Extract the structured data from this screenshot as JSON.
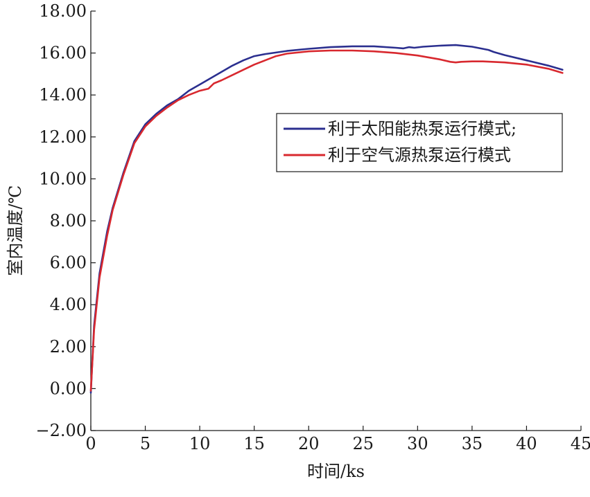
{
  "chart_data": {
    "type": "line",
    "title": "",
    "xlabel": "时间/ks",
    "ylabel": "室内温度/℃",
    "xlim": [
      0,
      45
    ],
    "ylim": [
      -2,
      18
    ],
    "xticks": [
      0,
      5,
      10,
      15,
      20,
      25,
      30,
      35,
      40,
      45
    ],
    "yticks": [
      -2,
      0,
      2,
      4,
      6,
      8,
      10,
      12,
      14,
      16,
      18
    ],
    "xtick_labels": [
      "0",
      "5",
      "10",
      "15",
      "20",
      "25",
      "30",
      "35",
      "40",
      "45"
    ],
    "ytick_labels": [
      "−2.00",
      "0.00",
      "2.00",
      "4.00",
      "6.00",
      "8.00",
      "10.00",
      "12.00",
      "14.00",
      "16.00",
      "18.00"
    ],
    "grid": false,
    "legend_position": "center-right",
    "series": [
      {
        "name": "利于太阳能热泵运行模式;",
        "color": "#2b2f8f",
        "x": [
          0,
          0.3,
          0.8,
          1.5,
          2,
          3,
          4,
          5,
          6,
          7,
          8,
          9,
          10,
          11,
          12,
          13,
          14,
          15,
          16,
          18,
          20,
          22,
          24,
          26,
          28,
          28.7,
          29.2,
          29.7,
          30.5,
          32,
          33.5,
          35,
          36.5,
          37,
          38,
          40,
          42,
          43.3
        ],
        "y": [
          -0.2,
          3.0,
          5.5,
          7.5,
          8.6,
          10.3,
          11.8,
          12.6,
          13.1,
          13.5,
          13.8,
          14.2,
          14.5,
          14.8,
          15.1,
          15.4,
          15.65,
          15.85,
          15.95,
          16.1,
          16.2,
          16.28,
          16.32,
          16.32,
          16.25,
          16.22,
          16.28,
          16.25,
          16.3,
          16.35,
          16.38,
          16.3,
          16.15,
          16.05,
          15.9,
          15.65,
          15.4,
          15.2
        ]
      },
      {
        "name": "利于空气源热泵运行模式",
        "color": "#d8282e",
        "x": [
          0,
          0.3,
          0.8,
          1.5,
          2,
          3,
          4,
          5,
          6,
          7,
          8,
          9,
          10,
          10.8,
          11,
          11.3,
          12,
          13,
          14,
          15,
          16,
          17,
          18,
          20,
          22,
          24,
          26,
          28,
          30,
          32,
          33,
          33.5,
          34,
          35,
          36,
          38,
          40,
          42,
          43.3
        ],
        "y": [
          -0.1,
          2.8,
          5.3,
          7.3,
          8.5,
          10.2,
          11.7,
          12.5,
          13.0,
          13.4,
          13.75,
          14.0,
          14.2,
          14.3,
          14.4,
          14.55,
          14.7,
          14.95,
          15.2,
          15.45,
          15.65,
          15.85,
          15.97,
          16.08,
          16.12,
          16.12,
          16.08,
          16.0,
          15.88,
          15.7,
          15.58,
          15.55,
          15.58,
          15.6,
          15.6,
          15.55,
          15.45,
          15.25,
          15.05
        ]
      }
    ]
  }
}
